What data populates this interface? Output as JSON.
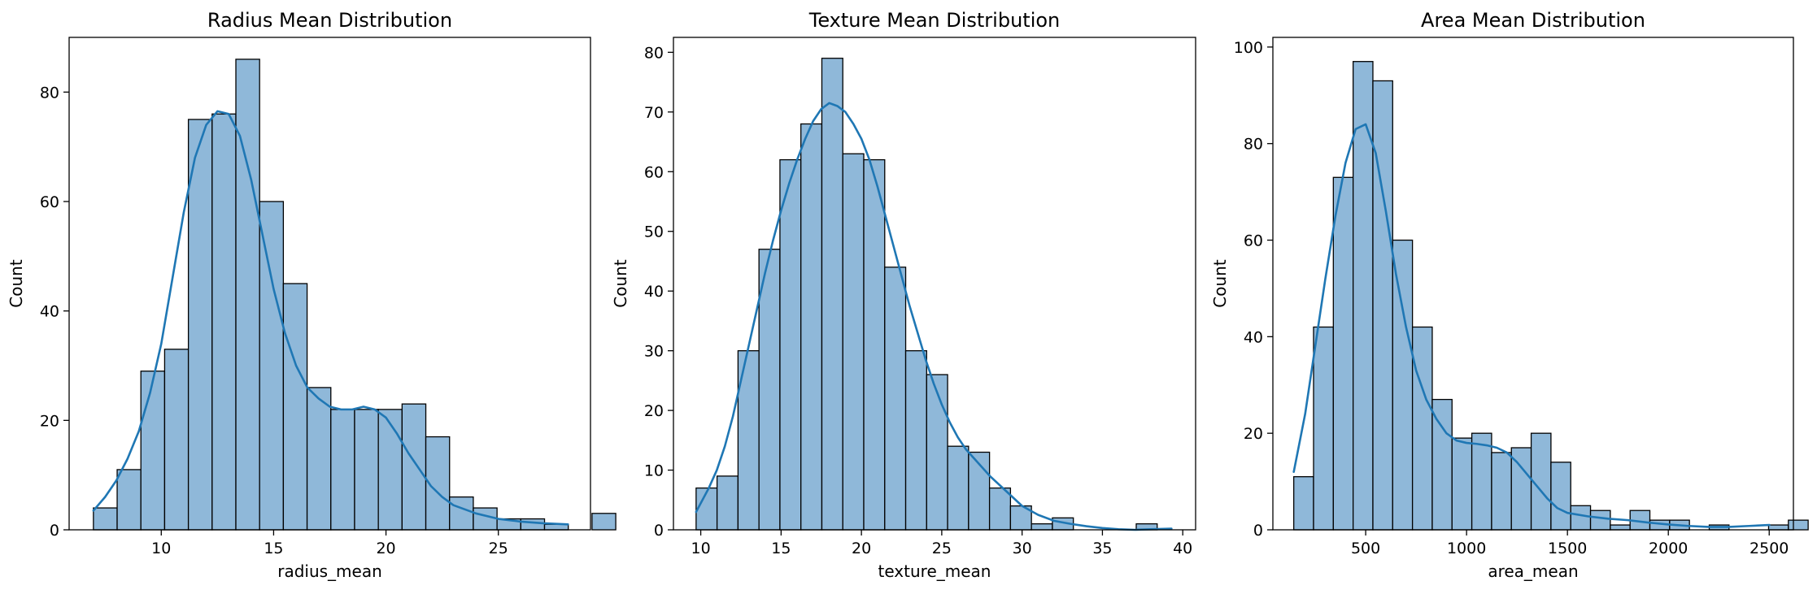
{
  "chart_data": [
    {
      "type": "bar",
      "title": "Radius Mean Distribution",
      "xlabel": "radius_mean",
      "ylabel": "Count",
      "xlim": [
        5.9,
        29.1
      ],
      "ylim": [
        0,
        90
      ],
      "xticks": [
        10,
        15,
        20,
        25
      ],
      "yticks": [
        0,
        20,
        40,
        60,
        80
      ],
      "grid": false,
      "bin_start": 6.98,
      "bin_width": 1.0566,
      "counts": [
        4,
        11,
        29,
        33,
        75,
        76,
        86,
        60,
        45,
        26,
        22,
        22,
        22,
        23,
        17,
        6,
        4,
        2,
        2,
        1,
        0,
        3
      ],
      "kde": {
        "x": [
          6.98,
          7.5,
          8,
          8.5,
          9,
          9.5,
          10,
          10.5,
          11,
          11.5,
          12,
          12.5,
          13,
          13.5,
          14,
          14.5,
          15,
          15.5,
          16,
          16.5,
          17,
          17.5,
          18,
          18.5,
          19,
          19.5,
          20,
          20.5,
          21,
          21.5,
          22,
          22.5,
          23,
          24,
          25,
          26,
          27,
          28.1
        ],
        "y": [
          3.5,
          6,
          9,
          13,
          18,
          25,
          34,
          46,
          58,
          68,
          74,
          76.5,
          76,
          72,
          64,
          54,
          44,
          36,
          30,
          26,
          24,
          22.5,
          22,
          22,
          22.5,
          22,
          20.5,
          17.5,
          14,
          11,
          8,
          6,
          4.5,
          3,
          2,
          1.5,
          1.2,
          1
        ]
      }
    },
    {
      "type": "bar",
      "title": "Texture Mean Distribution",
      "xlabel": "texture_mean",
      "ylabel": "Count",
      "xlim": [
        8.3,
        40.8
      ],
      "ylim": [
        0,
        82.5
      ],
      "xticks": [
        10,
        15,
        20,
        25,
        30,
        35,
        40
      ],
      "yticks": [
        0,
        10,
        20,
        30,
        40,
        50,
        60,
        70,
        80
      ],
      "grid": false,
      "bin_start": 9.71,
      "bin_width": 1.3045,
      "counts": [
        7,
        9,
        30,
        47,
        62,
        68,
        79,
        63,
        62,
        44,
        30,
        26,
        14,
        13,
        7,
        4,
        1,
        2,
        0,
        0,
        0,
        1
      ],
      "kde": {
        "x": [
          9.71,
          10.5,
          11,
          11.5,
          12,
          12.5,
          13,
          13.5,
          14,
          14.5,
          15,
          15.5,
          16,
          16.5,
          17,
          17.5,
          18,
          18.5,
          19,
          19.5,
          20,
          20.5,
          21,
          21.5,
          22,
          22.5,
          23,
          23.5,
          24,
          24.5,
          25,
          25.5,
          26,
          26.5,
          27,
          27.5,
          28,
          29,
          30,
          31,
          32,
          33,
          34,
          35,
          36,
          37,
          38,
          39.3
        ],
        "y": [
          3,
          7,
          10,
          14,
          19,
          25,
          31,
          37,
          43,
          48.5,
          53.5,
          58,
          62,
          65.5,
          68.5,
          70.5,
          71.5,
          71,
          70,
          68,
          65.5,
          62,
          57.5,
          52.5,
          47.5,
          42.5,
          37.5,
          33,
          28.5,
          24.5,
          21,
          18,
          15.5,
          13.5,
          12,
          10.5,
          9,
          6.5,
          4,
          2.5,
          1.5,
          1,
          0.6,
          0.3,
          0.1,
          0,
          0.1,
          0.2
        ]
      }
    },
    {
      "type": "bar",
      "title": "Area Mean Distribution",
      "xlabel": "area_mean",
      "ylabel": "Count",
      "xlim": [
        40,
        2620
      ],
      "ylim": [
        0,
        102
      ],
      "xticks": [
        500,
        1000,
        1500,
        2000,
        2500
      ],
      "yticks": [
        0,
        20,
        40,
        60,
        80,
        100
      ],
      "grid": false,
      "bin_start": 143.5,
      "bin_width": 98.06,
      "counts": [
        11,
        42,
        73,
        97,
        93,
        60,
        42,
        27,
        19,
        20,
        16,
        17,
        20,
        14,
        5,
        4,
        1,
        4,
        2,
        2,
        0,
        1,
        0,
        0,
        1,
        2
      ],
      "kde": {
        "x": [
          143.5,
          200,
          250,
          300,
          350,
          400,
          450,
          500,
          550,
          600,
          650,
          700,
          750,
          800,
          850,
          900,
          950,
          1000,
          1050,
          1100,
          1150,
          1200,
          1250,
          1300,
          1350,
          1400,
          1450,
          1500,
          1600,
          1700,
          1800,
          1900,
          2000,
          2100,
          2200,
          2300,
          2400,
          2501
        ],
        "y": [
          12,
          24,
          38,
          52,
          65,
          76,
          83,
          84,
          78,
          66,
          53,
          42,
          33,
          27,
          23,
          20,
          18.5,
          18,
          17.8,
          17.5,
          17,
          16,
          14,
          11.5,
          9,
          6.5,
          4.5,
          3.5,
          2.8,
          2.3,
          2,
          1.5,
          1.1,
          0.8,
          0.6,
          0.6,
          0.8,
          1
        ]
      }
    }
  ]
}
